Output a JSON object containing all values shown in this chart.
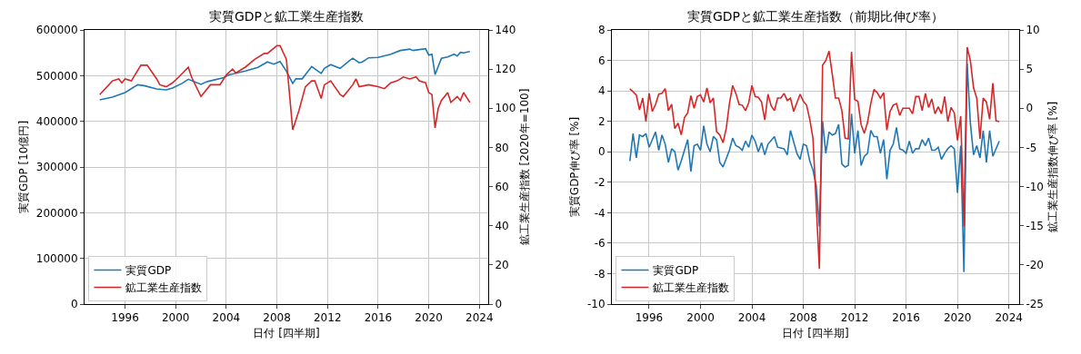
{
  "chart_data": [
    {
      "type": "line",
      "title": "実質GDPと鉱工業生産指数",
      "xlabel": "日付 [四半期]",
      "ylabel": "実質GDP [10億円]",
      "y2label": "鉱工業生産指数 [2020年=100]",
      "xlim": [
        1992.8,
        2024.7
      ],
      "xticks": [
        1996,
        2000,
        2004,
        2008,
        2012,
        2016,
        2020,
        2024
      ],
      "ylim": [
        0,
        600000
      ],
      "yticks": [
        0,
        100000,
        200000,
        300000,
        400000,
        500000,
        600000
      ],
      "y2lim": [
        0,
        140
      ],
      "y2ticks": [
        0,
        20,
        40,
        60,
        80,
        100,
        120,
        140
      ],
      "grid": true,
      "legend": "bottom left",
      "series": [
        {
          "name": "実質GDP",
          "color": "#1f77b4",
          "x": [
            1994.0,
            1995.0,
            1996.0,
            1997.0,
            1997.5,
            1998.5,
            1999.25,
            1999.75,
            2000.5,
            2001.0,
            2002.0,
            2002.5,
            2003.75,
            2004.25,
            2005.5,
            2006.5,
            2007.25,
            2007.75,
            2008.25,
            2008.75,
            2009.25,
            2009.5,
            2010.0,
            2010.75,
            2011.5,
            2011.75,
            2012.25,
            2013.0,
            2013.75,
            2014.0,
            2014.5,
            2014.75,
            2015.25,
            2016.0,
            2017.0,
            2017.75,
            2018.5,
            2018.75,
            2019.75,
            2020.0,
            2020.25,
            2020.5,
            2021.0,
            2021.5,
            2022.0,
            2022.25,
            2022.5,
            2022.75,
            2023.25
          ],
          "values": [
            447000,
            453000,
            463000,
            480000,
            478000,
            471000,
            469000,
            473000,
            483000,
            492000,
            481000,
            487000,
            495000,
            502000,
            510000,
            518000,
            530000,
            525000,
            531000,
            510000,
            483000,
            493000,
            493000,
            520000,
            505000,
            516000,
            524000,
            516000,
            533000,
            538000,
            528000,
            530000,
            539000,
            540000,
            547000,
            555000,
            558000,
            555000,
            559000,
            545000,
            547000,
            502000,
            538000,
            541000,
            547000,
            543000,
            551000,
            550000,
            553000
          ]
        },
        {
          "name": "鉱工業生産指数",
          "color": "#d62728",
          "axis": "y2",
          "x": [
            1994.0,
            1995.0,
            1995.5,
            1995.75,
            1996.0,
            1996.5,
            1997.25,
            1997.75,
            1998.5,
            1998.75,
            1999.25,
            1999.75,
            2000.25,
            2001.0,
            2001.25,
            2002.0,
            2002.25,
            2002.75,
            2003.5,
            2004.0,
            2004.5,
            2004.75,
            2005.5,
            2006.25,
            2007.0,
            2007.25,
            2008.0,
            2008.25,
            2008.75,
            2009.25,
            2009.75,
            2010.25,
            2010.75,
            2011.0,
            2011.5,
            2011.75,
            2012.25,
            2013.0,
            2013.25,
            2014.0,
            2014.25,
            2014.5,
            2015.25,
            2016.0,
            2016.5,
            2017.0,
            2017.5,
            2018.0,
            2018.5,
            2019.0,
            2019.25,
            2019.75,
            2020.0,
            2020.25,
            2020.5,
            2020.75,
            2021.0,
            2021.5,
            2021.75,
            2022.25,
            2022.5,
            2022.75,
            2023.25
          ],
          "values": [
            107,
            114,
            115,
            113,
            115,
            114,
            122,
            122,
            115,
            112,
            111,
            113,
            116,
            121,
            116,
            106,
            108,
            112,
            112,
            117,
            120,
            118,
            121,
            125,
            128,
            128,
            132,
            132,
            125,
            89,
            99,
            111,
            114,
            114,
            105,
            112,
            114,
            107,
            106,
            112,
            115,
            111,
            112,
            111,
            110,
            113,
            114,
            116,
            115,
            116,
            114,
            113,
            108,
            107,
            90,
            100,
            104,
            108,
            103,
            106,
            104,
            108,
            103
          ]
        }
      ]
    },
    {
      "type": "line",
      "title": "実質GDPと鉱工業生産指数（前期比伸び率）",
      "xlabel": "日付 [四半期]",
      "ylabel": "実質GDP伸び率 [%]",
      "y2label": "鉱工業生産指数伸び率 [%]",
      "xlim": [
        1993.1,
        2024.8
      ],
      "xticks": [
        1996,
        2000,
        2004,
        2008,
        2012,
        2016,
        2020,
        2024
      ],
      "ylim": [
        -10,
        8
      ],
      "yticks": [
        -10,
        -8,
        -6,
        -4,
        -2,
        0,
        2,
        4,
        6,
        8
      ],
      "y2lim": [
        -25,
        10
      ],
      "y2ticks": [
        -25,
        -20,
        -15,
        -10,
        -5,
        0,
        5,
        10
      ],
      "grid": true,
      "legend": "bottom left",
      "series": [
        {
          "name": "実質GDP",
          "color": "#1f77b4",
          "x": [
            1994.5,
            1994.75,
            1995.0,
            1995.25,
            1995.5,
            1995.75,
            1996.0,
            1996.25,
            1996.5,
            1996.75,
            1997.0,
            1997.25,
            1997.5,
            1997.75,
            1998.0,
            1998.25,
            1998.5,
            1999.0,
            1999.25,
            1999.5,
            1999.75,
            2000.0,
            2000.25,
            2000.5,
            2000.75,
            2001.0,
            2001.25,
            2001.5,
            2001.75,
            2002.25,
            2002.5,
            2002.75,
            2003.0,
            2003.25,
            2003.5,
            2003.75,
            2004.0,
            2004.25,
            2004.5,
            2004.75,
            2005.0,
            2005.25,
            2005.75,
            2006.0,
            2006.5,
            2006.75,
            2007.0,
            2007.5,
            2007.75,
            2008.0,
            2008.25,
            2008.5,
            2008.75,
            2009.0,
            2009.25,
            2009.5,
            2009.75,
            2010.0,
            2010.25,
            2010.5,
            2010.75,
            2011.0,
            2011.25,
            2011.5,
            2011.75,
            2012.0,
            2012.25,
            2012.5,
            2012.75,
            2013.0,
            2013.25,
            2013.5,
            2013.75,
            2014.0,
            2014.25,
            2014.5,
            2014.75,
            2015.0,
            2015.25,
            2015.5,
            2015.75,
            2016.0,
            2016.25,
            2016.5,
            2016.75,
            2017.0,
            2017.25,
            2017.5,
            2017.75,
            2018.0,
            2018.25,
            2018.5,
            2018.75,
            2019.0,
            2019.25,
            2019.5,
            2019.75,
            2020.0,
            2020.25,
            2020.5,
            2020.75,
            2021.0,
            2021.25,
            2021.5,
            2021.75,
            2022.0,
            2022.25,
            2022.5,
            2022.75,
            2023.25
          ],
          "values": [
            -0.6,
            1.2,
            -0.4,
            1.1,
            1.0,
            1.2,
            0.3,
            0.8,
            1.3,
            0.1,
            1.1,
            0.5,
            -0.7,
            0.2,
            0.0,
            -1.2,
            -0.6,
            0.8,
            -1.3,
            0.4,
            0.5,
            0.1,
            1.7,
            0.5,
            0.0,
            1.0,
            0.8,
            -0.7,
            -1.0,
            0.1,
            0.9,
            0.4,
            0.3,
            0.1,
            0.7,
            0.3,
            1.1,
            0.7,
            0.0,
            0.6,
            -0.2,
            0.5,
            1.0,
            0.3,
            0.2,
            -0.2,
            1.4,
            -0.1,
            -0.5,
            0.5,
            0.4,
            -0.6,
            -1.2,
            -2.2,
            -4.9,
            2.0,
            -0.1,
            1.3,
            1.1,
            1.2,
            1.8,
            -0.8,
            -1.0,
            -0.9,
            2.5,
            -0.1,
            1.4,
            -0.9,
            -0.3,
            -0.1,
            1.4,
            1.0,
            1.0,
            -0.1,
            0.8,
            -1.8,
            0.1,
            0.5,
            1.6,
            0.2,
            0.1,
            -0.1,
            0.7,
            -0.1,
            0.2,
            0.2,
            0.8,
            0.4,
            0.9,
            0.1,
            0.1,
            0.3,
            -0.5,
            -0.1,
            0.2,
            0.4,
            0.2,
            -2.7,
            0.4,
            -7.9,
            5.8,
            1.9,
            -0.2,
            0.4,
            -0.4,
            1.4,
            -0.7,
            1.4,
            -0.3,
            0.7
          ]
        },
        {
          "name": "鉱工業生産指数",
          "color": "#d62728",
          "axis": "y2",
          "x": [
            1994.5,
            1994.75,
            1995.0,
            1995.25,
            1995.5,
            1995.75,
            1996.0,
            1996.25,
            1996.5,
            1996.75,
            1997.0,
            1997.25,
            1997.5,
            1997.75,
            1998.0,
            1998.25,
            1998.5,
            1998.75,
            1999.0,
            1999.25,
            1999.5,
            1999.75,
            2000.0,
            2000.25,
            2000.5,
            2000.75,
            2001.0,
            2001.25,
            2001.5,
            2001.75,
            2002.0,
            2002.25,
            2002.5,
            2002.75,
            2003.0,
            2003.25,
            2003.5,
            2003.75,
            2004.0,
            2004.25,
            2004.5,
            2004.75,
            2005.0,
            2005.25,
            2005.5,
            2005.75,
            2006.0,
            2006.25,
            2006.5,
            2006.75,
            2007.0,
            2007.25,
            2007.75,
            2008.0,
            2008.25,
            2008.5,
            2008.75,
            2009.25,
            2009.5,
            2009.75,
            2010.0,
            2010.25,
            2010.5,
            2010.75,
            2011.0,
            2011.25,
            2011.5,
            2011.75,
            2012.0,
            2012.25,
            2012.5,
            2012.75,
            2013.0,
            2013.25,
            2013.5,
            2013.75,
            2014.0,
            2014.25,
            2014.5,
            2014.75,
            2015.0,
            2015.25,
            2015.5,
            2015.75,
            2016.0,
            2016.25,
            2016.5,
            2016.75,
            2017.0,
            2017.25,
            2017.5,
            2017.75,
            2018.0,
            2018.25,
            2018.5,
            2018.75,
            2019.0,
            2019.25,
            2019.5,
            2019.75,
            2020.0,
            2020.25,
            2020.5,
            2020.75,
            2021.0,
            2021.25,
            2021.5,
            2021.75,
            2022.0,
            2022.25,
            2022.5,
            2022.75,
            2023.0,
            2023.25
          ],
          "values": [
            2.5,
            2.1,
            1.7,
            -0.2,
            1.3,
            -1.7,
            1.9,
            -0.4,
            0.5,
            1.8,
            1.9,
            2.5,
            -0.3,
            0.5,
            -2.6,
            -1.9,
            -3.4,
            -1.2,
            -0.6,
            1.6,
            0.0,
            1.5,
            1.7,
            0.8,
            2.6,
            0.7,
            1.3,
            -3.0,
            -3.4,
            -4.4,
            -2.6,
            0.6,
            2.9,
            1.9,
            0.5,
            0.4,
            -0.3,
            0.7,
            2.9,
            1.5,
            1.4,
            0.8,
            -1.5,
            1.8,
            0.3,
            -0.3,
            1.3,
            1.3,
            1.9,
            1.0,
            1.3,
            -0.4,
            1.8,
            0.9,
            0.4,
            -1.4,
            -3.8,
            -20.5,
            5.5,
            6.1,
            7.3,
            4.4,
            1.3,
            1.3,
            -0.3,
            -3.8,
            -3.9,
            7.2,
            1.1,
            0.9,
            -2.1,
            -3.2,
            -1.8,
            0.6,
            2.4,
            2.0,
            1.3,
            2.0,
            -2.8,
            -0.4,
            0.4,
            0.6,
            -0.9,
            0.0,
            0.0,
            0.0,
            -0.7,
            1.5,
            1.5,
            -0.3,
            1.9,
            0.1,
            1.2,
            -0.7,
            0.2,
            -0.7,
            1.5,
            -1.7,
            0.1,
            -0.6,
            -4.1,
            -1.0,
            -15.1,
            7.8,
            6.1,
            2.6,
            1.3,
            -3.9,
            1.3,
            0.8,
            -1.4,
            3.2,
            -1.6,
            -1.7
          ]
        }
      ]
    }
  ]
}
